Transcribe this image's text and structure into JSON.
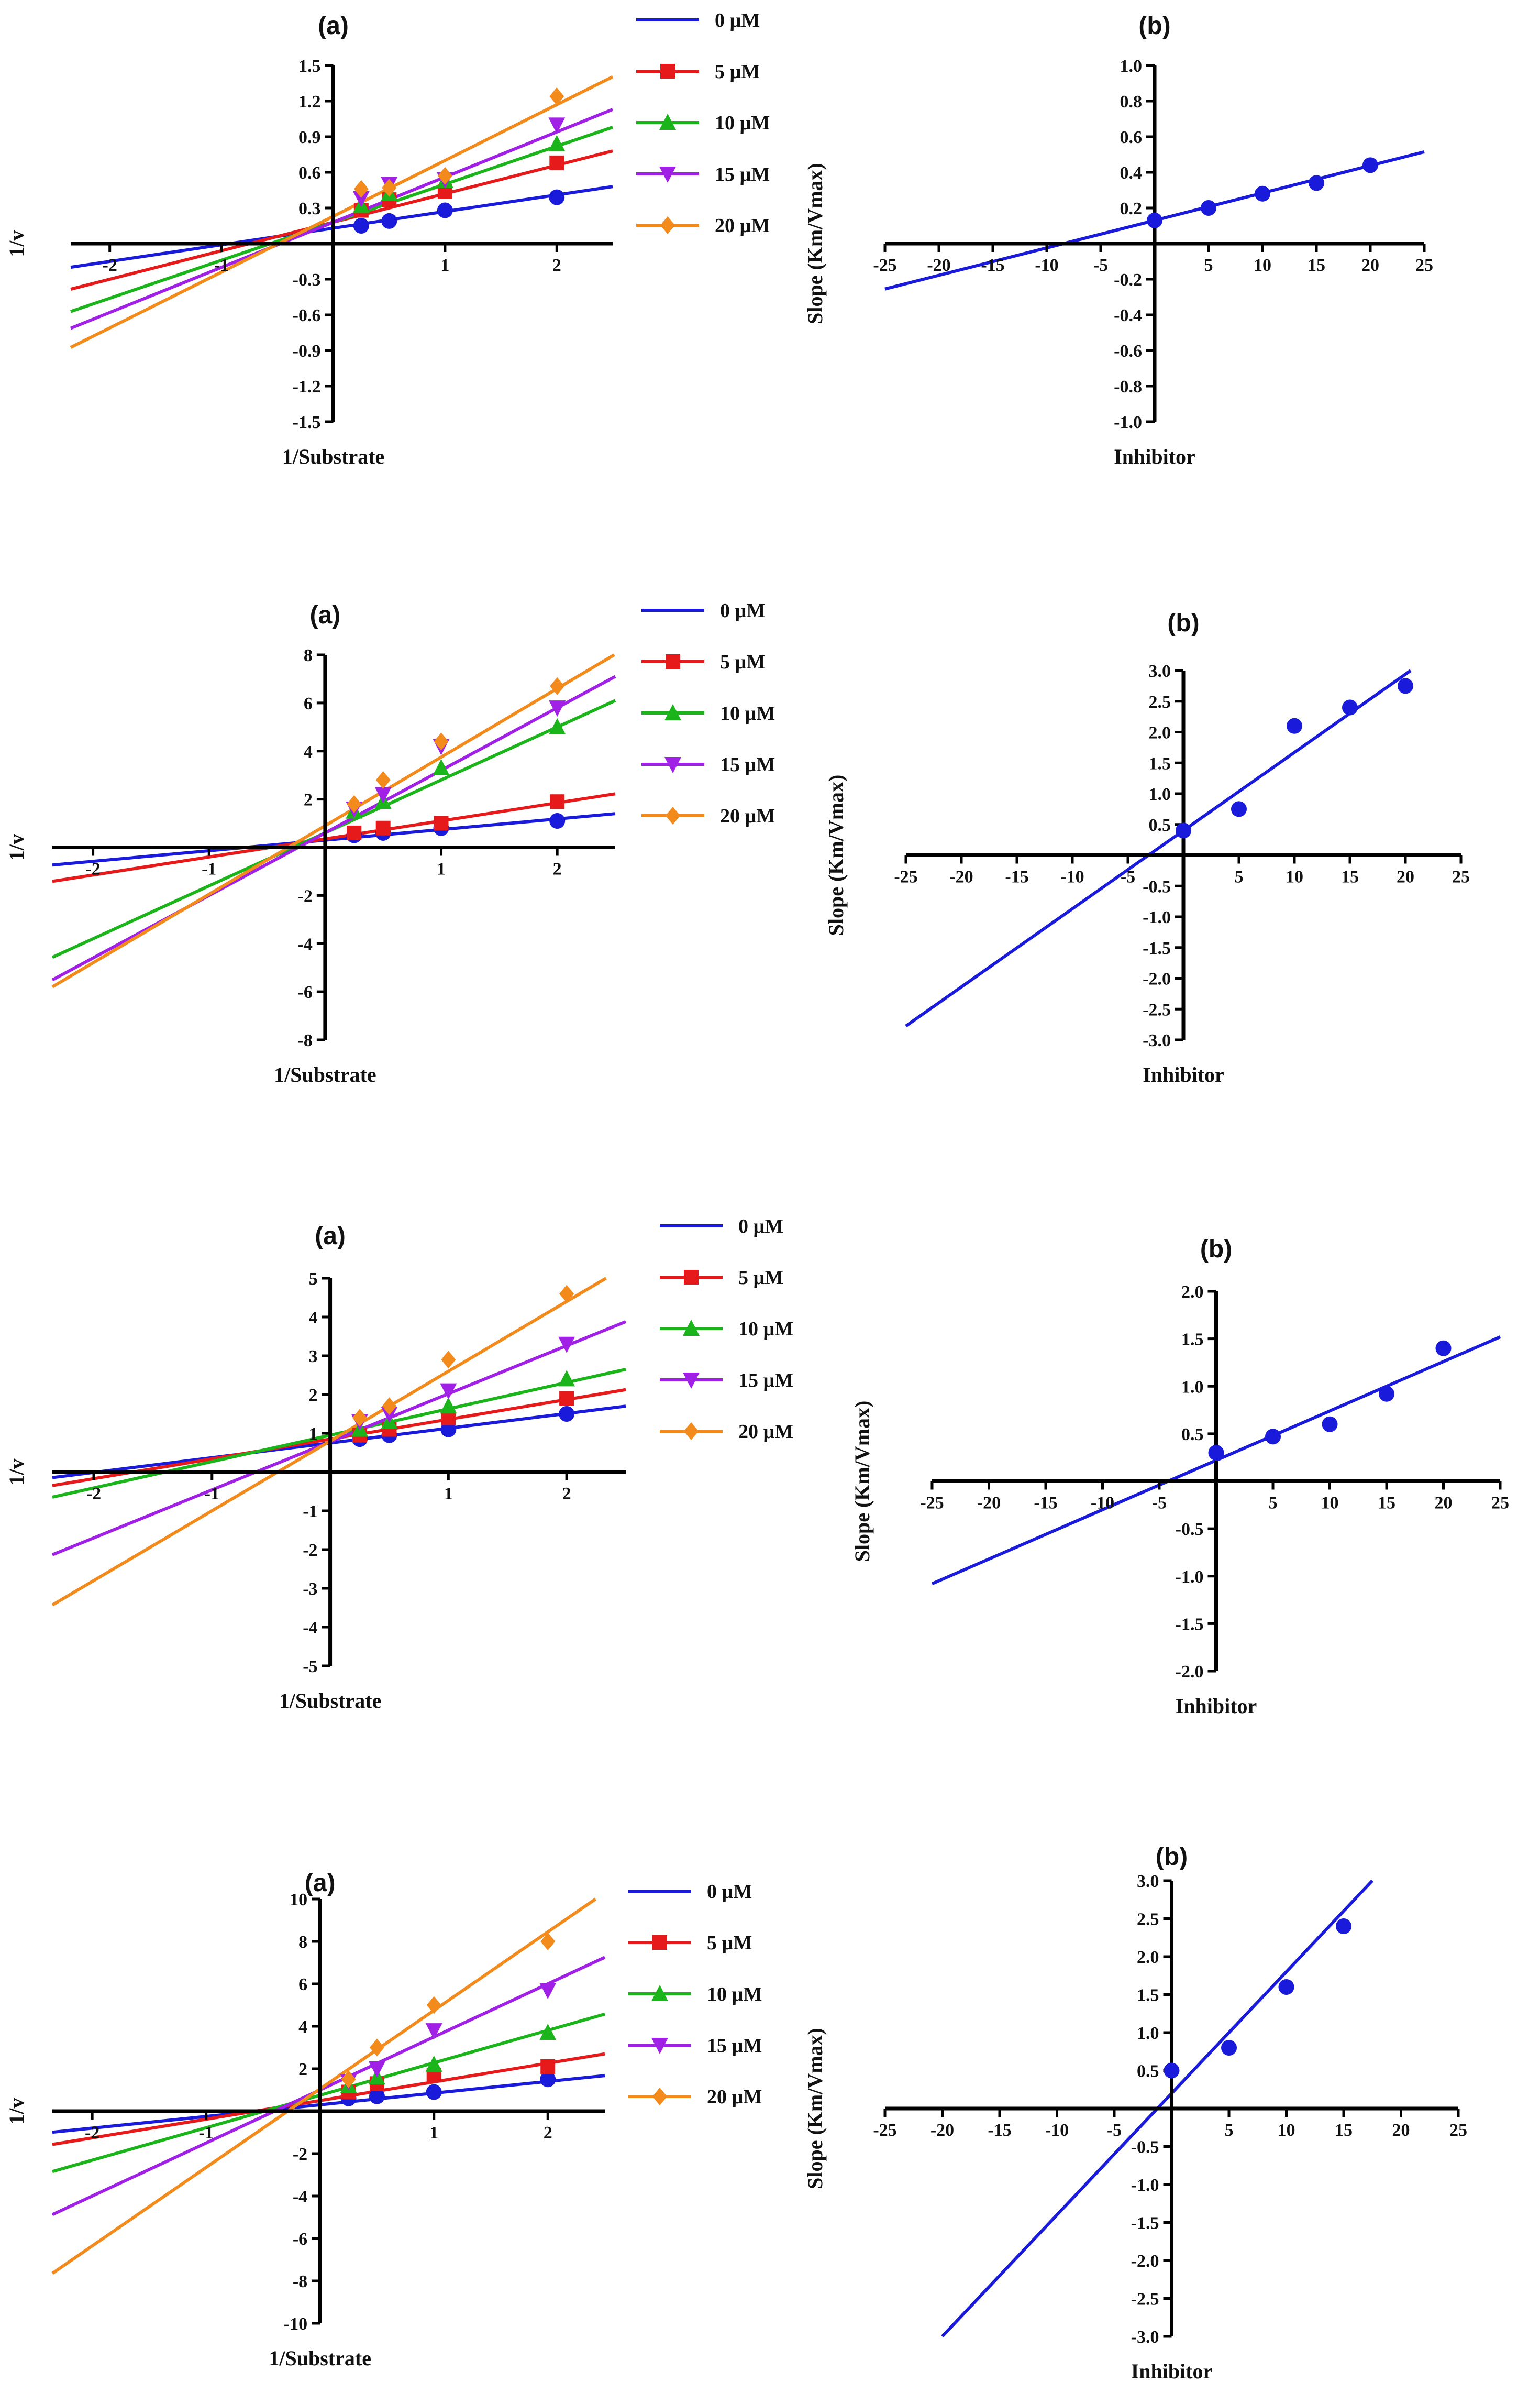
{
  "figure": {
    "colors": {
      "0": "#1a1adb",
      "5": "#e61a1a",
      "10": "#1bb51b",
      "15": "#a020e6",
      "20": "#f28a1c",
      "axis": "#000000"
    },
    "legend_labels": [
      "0 µM",
      "5 µM",
      "10 µM",
      "15 µM",
      "20 µM"
    ]
  },
  "chart_data": [
    {
      "id": "r1a",
      "type": "line",
      "title": "(a)",
      "xlabel": "1/Substrate",
      "ylabel": "1/v",
      "xlim": [
        -2.35,
        2.5
      ],
      "ylim": [
        -1.5,
        1.5
      ],
      "xticks": [
        -2,
        -1,
        1,
        2
      ],
      "yticks": [
        -1.5,
        -1.2,
        -0.9,
        -0.6,
        -0.3,
        0.3,
        0.6,
        0.9,
        1.2,
        1.5
      ],
      "ytick_decimals": 1,
      "series": [
        {
          "name": "0 µM",
          "marker": "circle",
          "x": [
            0.25,
            0.5,
            1,
            2
          ],
          "y": [
            0.15,
            0.19,
            0.28,
            0.39
          ],
          "fit": {
            "slope": 0.14,
            "intercept": 0.13
          }
        },
        {
          "name": "5 µM",
          "marker": "square",
          "x": [
            0.25,
            0.5,
            1,
            2
          ],
          "y": [
            0.28,
            0.37,
            0.44,
            0.68
          ],
          "fit": {
            "slope": 0.24,
            "intercept": 0.18
          }
        },
        {
          "name": "10 µM",
          "marker": "triangle-up",
          "x": [
            0.25,
            0.5,
            1,
            2
          ],
          "y": [
            0.32,
            0.42,
            0.53,
            0.84
          ],
          "fit": {
            "slope": 0.32,
            "intercept": 0.18
          }
        },
        {
          "name": "15 µM",
          "marker": "triangle-down",
          "x": [
            0.25,
            0.5,
            1,
            2
          ],
          "y": [
            0.38,
            0.5,
            0.54,
            1.0
          ],
          "fit": {
            "slope": 0.38,
            "intercept": 0.18
          }
        },
        {
          "name": "20 µM",
          "marker": "diamond",
          "x": [
            0.25,
            0.5,
            1,
            2
          ],
          "y": [
            0.46,
            0.47,
            0.57,
            1.24
          ],
          "fit": {
            "slope": 0.47,
            "intercept": 0.23
          }
        }
      ]
    },
    {
      "id": "r1b",
      "type": "line",
      "title": "(b)",
      "xlabel": "Inhibitor",
      "ylabel": "Slope (Km/Vmax)",
      "xlim": [
        -25,
        25
      ],
      "ylim": [
        -1.0,
        1.0
      ],
      "xticks": [
        -25,
        -20,
        -15,
        -10,
        -5,
        5,
        10,
        15,
        20,
        25
      ],
      "yticks": [
        -1.0,
        -0.8,
        -0.6,
        -0.4,
        -0.2,
        0.2,
        0.4,
        0.6,
        0.8,
        1.0
      ],
      "ytick_decimals": 1,
      "series": [
        {
          "name": "0 µM",
          "marker": "circle",
          "x": [
            0,
            5,
            10,
            15,
            20
          ],
          "y": [
            0.13,
            0.2,
            0.28,
            0.34,
            0.44
          ],
          "fit": {
            "slope": 0.0154,
            "intercept": 0.13
          }
        }
      ]
    },
    {
      "id": "r2a",
      "type": "line",
      "title": "(a)",
      "xlabel": "1/Substrate",
      "ylabel": "1/v",
      "xlim": [
        -2.35,
        2.5
      ],
      "ylim": [
        -8,
        8
      ],
      "xticks": [
        -2,
        -1,
        1,
        2
      ],
      "yticks": [
        -8,
        -6,
        -4,
        -2,
        2,
        4,
        6,
        8
      ],
      "ytick_decimals": 0,
      "series": [
        {
          "name": "0 µM",
          "marker": "circle",
          "x": [
            0.25,
            0.5,
            1,
            2
          ],
          "y": [
            0.5,
            0.6,
            0.8,
            1.1
          ],
          "fit": {
            "slope": 0.44,
            "intercept": 0.3
          }
        },
        {
          "name": "5 µM",
          "marker": "square",
          "x": [
            0.25,
            0.5,
            1,
            2
          ],
          "y": [
            0.6,
            0.8,
            1.0,
            1.9
          ],
          "fit": {
            "slope": 0.75,
            "intercept": 0.35
          }
        },
        {
          "name": "10 µM",
          "marker": "triangle-up",
          "x": [
            0.25,
            0.5,
            1,
            2
          ],
          "y": [
            1.5,
            1.9,
            3.3,
            5.0
          ],
          "fit": {
            "slope": 2.2,
            "intercept": 0.6
          }
        },
        {
          "name": "15 µM",
          "marker": "triangle-down",
          "x": [
            0.25,
            0.5,
            1,
            2
          ],
          "y": [
            1.6,
            2.2,
            4.2,
            5.8
          ],
          "fit": {
            "slope": 2.6,
            "intercept": 0.6
          }
        },
        {
          "name": "20 µM",
          "marker": "diamond",
          "x": [
            0.25,
            0.5,
            1,
            2
          ],
          "y": [
            1.8,
            2.8,
            4.4,
            6.7
          ],
          "fit": {
            "slope": 2.85,
            "intercept": 0.9
          }
        }
      ]
    },
    {
      "id": "r2b",
      "type": "line",
      "title": "(b)",
      "xlabel": "Inhibitor",
      "ylabel": "Slope (Km/Vmax)",
      "xlim": [
        -25,
        25
      ],
      "ylim": [
        -3.0,
        3.0
      ],
      "xticks": [
        -25,
        -20,
        -15,
        -10,
        -5,
        5,
        10,
        15,
        20,
        25
      ],
      "yticks": [
        -3.0,
        -2.5,
        -2.0,
        -1.5,
        -1.0,
        -0.5,
        0.5,
        1.0,
        1.5,
        2.0,
        2.5,
        3.0
      ],
      "ytick_decimals": 1,
      "series": [
        {
          "name": "0 µM",
          "marker": "circle",
          "x": [
            0,
            5,
            10,
            15,
            20
          ],
          "y": [
            0.4,
            0.75,
            2.1,
            2.4,
            2.75
          ],
          "fit": {
            "slope": 0.127,
            "intercept": 0.4
          }
        }
      ]
    },
    {
      "id": "r3a",
      "type": "line",
      "title": "(a)",
      "xlabel": "1/Substrate",
      "ylabel": "1/v",
      "xlim": [
        -2.35,
        2.5
      ],
      "ylim": [
        -5,
        5
      ],
      "xticks": [
        -2,
        -1,
        1,
        2
      ],
      "yticks": [
        -5,
        -4,
        -3,
        -2,
        -1,
        1,
        2,
        3,
        4,
        5
      ],
      "ytick_decimals": 0,
      "series": [
        {
          "name": "0 µM",
          "marker": "circle",
          "x": [
            0.25,
            0.5,
            1,
            2
          ],
          "y": [
            0.85,
            0.95,
            1.1,
            1.5
          ],
          "fit": {
            "slope": 0.38,
            "intercept": 0.75
          }
        },
        {
          "name": "5 µM",
          "marker": "square",
          "x": [
            0.25,
            0.5,
            1,
            2
          ],
          "y": [
            0.95,
            1.1,
            1.4,
            1.9
          ],
          "fit": {
            "slope": 0.51,
            "intercept": 0.85
          }
        },
        {
          "name": "10 µM",
          "marker": "triangle-up",
          "x": [
            0.25,
            0.5,
            1,
            2
          ],
          "y": [
            1.1,
            1.3,
            1.7,
            2.4
          ],
          "fit": {
            "slope": 0.68,
            "intercept": 0.95
          }
        },
        {
          "name": "15 µM",
          "marker": "triangle-down",
          "x": [
            0.25,
            0.5,
            1,
            2
          ],
          "y": [
            1.3,
            1.5,
            2.1,
            3.3
          ],
          "fit": {
            "slope": 1.24,
            "intercept": 0.78
          }
        },
        {
          "name": "20 µM",
          "marker": "diamond",
          "x": [
            0.25,
            0.5,
            1,
            2
          ],
          "y": [
            1.4,
            1.7,
            2.9,
            4.6
          ],
          "fit": {
            "slope": 1.8,
            "intercept": 0.8
          }
        }
      ]
    },
    {
      "id": "r3b",
      "type": "line",
      "title": "(b)",
      "xlabel": "Inhibitor",
      "ylabel": "Slope (Km/Vmax)",
      "xlim": [
        -25,
        25
      ],
      "ylim": [
        -2.0,
        2.0
      ],
      "xticks": [
        -25,
        -20,
        -15,
        -10,
        -5,
        5,
        10,
        15,
        20,
        25
      ],
      "yticks": [
        -2.0,
        -1.5,
        -1.0,
        -0.5,
        0.5,
        1.0,
        1.5,
        2.0
      ],
      "ytick_decimals": 1,
      "series": [
        {
          "name": "0 µM",
          "marker": "circle",
          "x": [
            0,
            5,
            10,
            15,
            20
          ],
          "y": [
            0.3,
            0.47,
            0.6,
            0.92,
            1.4
          ],
          "fit": {
            "slope": 0.052,
            "intercept": 0.22
          }
        }
      ]
    },
    {
      "id": "r4a",
      "type": "line",
      "title": "(a)",
      "xlabel": "1/Substrate",
      "ylabel": "1/v",
      "xlim": [
        -2.35,
        2.5
      ],
      "ylim": [
        -10,
        10
      ],
      "xticks": [
        -2,
        -1,
        1,
        2
      ],
      "yticks": [
        -10,
        -8,
        -6,
        -4,
        -2,
        2,
        4,
        6,
        8,
        10
      ],
      "ytick_decimals": 0,
      "series": [
        {
          "name": "0 µM",
          "marker": "circle",
          "x": [
            0.25,
            0.5,
            1,
            2
          ],
          "y": [
            0.6,
            0.7,
            0.9,
            1.5
          ],
          "fit": {
            "slope": 0.55,
            "intercept": 0.3
          }
        },
        {
          "name": "5 µM",
          "marker": "square",
          "x": [
            0.25,
            0.5,
            1,
            2
          ],
          "y": [
            0.9,
            1.3,
            1.7,
            2.1
          ],
          "fit": {
            "slope": 0.88,
            "intercept": 0.5
          }
        },
        {
          "name": "10 µM",
          "marker": "triangle-up",
          "x": [
            0.25,
            0.5,
            1,
            2
          ],
          "y": [
            1.2,
            1.6,
            2.2,
            3.7
          ],
          "fit": {
            "slope": 1.53,
            "intercept": 0.75
          }
        },
        {
          "name": "15 µM",
          "marker": "triangle-down",
          "x": [
            0.25,
            0.5,
            1,
            2
          ],
          "y": [
            1.4,
            2.0,
            3.8,
            5.7
          ],
          "fit": {
            "slope": 2.5,
            "intercept": 1.0
          }
        },
        {
          "name": "20 µM",
          "marker": "diamond",
          "x": [
            0.25,
            0.5,
            1,
            2
          ],
          "y": [
            1.5,
            3.0,
            5.0,
            8.0
          ],
          "fit": {
            "slope": 3.7,
            "intercept": 1.05
          }
        }
      ]
    },
    {
      "id": "r4b",
      "type": "line",
      "title": "(b)",
      "xlabel": "Inhibitor",
      "ylabel": "Slope (Km/Vmax)",
      "xlim": [
        -25,
        25
      ],
      "ylim": [
        -3.0,
        3.0
      ],
      "xticks": [
        -25,
        -20,
        -15,
        -10,
        -5,
        5,
        10,
        15,
        20,
        25
      ],
      "yticks": [
        -3.0,
        -2.5,
        -2.0,
        -1.5,
        -1.0,
        -0.5,
        0.5,
        1.0,
        1.5,
        2.0,
        2.5,
        3.0
      ],
      "ytick_decimals": 1,
      "series": [
        {
          "name": "0 µM",
          "marker": "circle",
          "x": [
            0,
            5,
            10,
            15
          ],
          "y": [
            0.5,
            0.8,
            1.6,
            2.4
          ],
          "fit": {
            "slope": 0.16,
            "intercept": 0.2
          }
        }
      ]
    }
  ]
}
